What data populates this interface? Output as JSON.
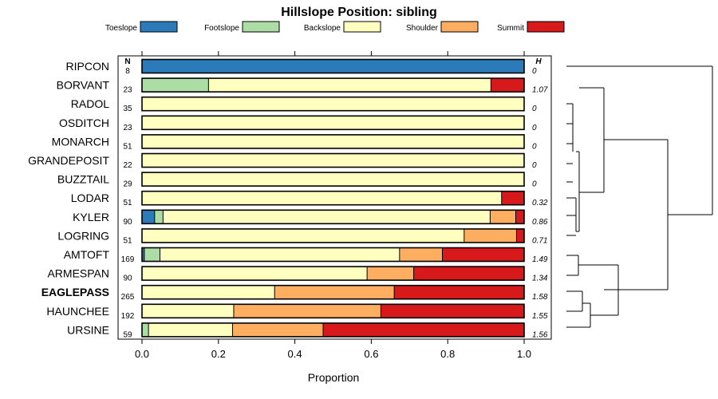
{
  "chart_data": {
    "type": "bar",
    "orientation": "horizontal",
    "stacked": true,
    "title": "Hillslope Position: sibling",
    "xlabel": "Proportion",
    "xlim": [
      0,
      1
    ],
    "xticks": [
      "0.0",
      "0.2",
      "0.4",
      "0.6",
      "0.8",
      "1.0"
    ],
    "n_header": "N",
    "h_header": "H",
    "legend_position": "top",
    "series": [
      {
        "name": "Toeslope",
        "color": "#2b7bba"
      },
      {
        "name": "Footslope",
        "color": "#abdda4"
      },
      {
        "name": "Backslope",
        "color": "#ffffbf"
      },
      {
        "name": "Shoulder",
        "color": "#fdae61"
      },
      {
        "name": "Summit",
        "color": "#d7191c"
      }
    ],
    "categories": [
      {
        "label": "RIPCON",
        "n": "8",
        "h": "0",
        "bold": false,
        "values": [
          1.0,
          0,
          0,
          0,
          0
        ]
      },
      {
        "label": "BORVANT",
        "n": "23",
        "h": "1.07",
        "bold": false,
        "values": [
          0,
          0.174,
          0.739,
          0,
          0.087
        ]
      },
      {
        "label": "RADOL",
        "n": "35",
        "h": "0",
        "bold": false,
        "values": [
          0,
          0,
          1.0,
          0,
          0
        ]
      },
      {
        "label": "OSDITCH",
        "n": "23",
        "h": "0",
        "bold": false,
        "values": [
          0,
          0,
          1.0,
          0,
          0
        ]
      },
      {
        "label": "MONARCH",
        "n": "51",
        "h": "0",
        "bold": false,
        "values": [
          0,
          0,
          1.0,
          0,
          0
        ]
      },
      {
        "label": "GRANDEPOSIT",
        "n": "22",
        "h": "0",
        "bold": false,
        "values": [
          0,
          0,
          1.0,
          0,
          0
        ]
      },
      {
        "label": "BUZZTAIL",
        "n": "29",
        "h": "0",
        "bold": false,
        "values": [
          0,
          0,
          1.0,
          0,
          0
        ]
      },
      {
        "label": "LODAR",
        "n": "51",
        "h": "0.32",
        "bold": false,
        "values": [
          0,
          0,
          0.941,
          0,
          0.059
        ]
      },
      {
        "label": "KYLER",
        "n": "90",
        "h": "0.86",
        "bold": false,
        "values": [
          0.033,
          0.022,
          0.856,
          0.067,
          0.022
        ]
      },
      {
        "label": "LOGRING",
        "n": "51",
        "h": "0.71",
        "bold": false,
        "values": [
          0,
          0,
          0.843,
          0.137,
          0.02
        ]
      },
      {
        "label": "AMTOFT",
        "n": "169",
        "h": "1.49",
        "bold": false,
        "values": [
          0.006,
          0.041,
          0.627,
          0.112,
          0.214
        ]
      },
      {
        "label": "ARMESPAN",
        "n": "90",
        "h": "1.34",
        "bold": false,
        "values": [
          0,
          0,
          0.589,
          0.122,
          0.289
        ]
      },
      {
        "label": "EAGLEPASS",
        "n": "265",
        "h": "1.58",
        "bold": true,
        "values": [
          0,
          0,
          0.347,
          0.313,
          0.34
        ]
      },
      {
        "label": "HAUNCHEE",
        "n": "192",
        "h": "1.55",
        "bold": false,
        "values": [
          0,
          0,
          0.24,
          0.385,
          0.375
        ]
      },
      {
        "label": "URSINE",
        "n": "59",
        "h": "1.56",
        "bold": false,
        "values": [
          0,
          0.017,
          0.22,
          0.237,
          0.526
        ]
      }
    ],
    "dendrogram": "hierarchical clustering of series on the right margin"
  }
}
